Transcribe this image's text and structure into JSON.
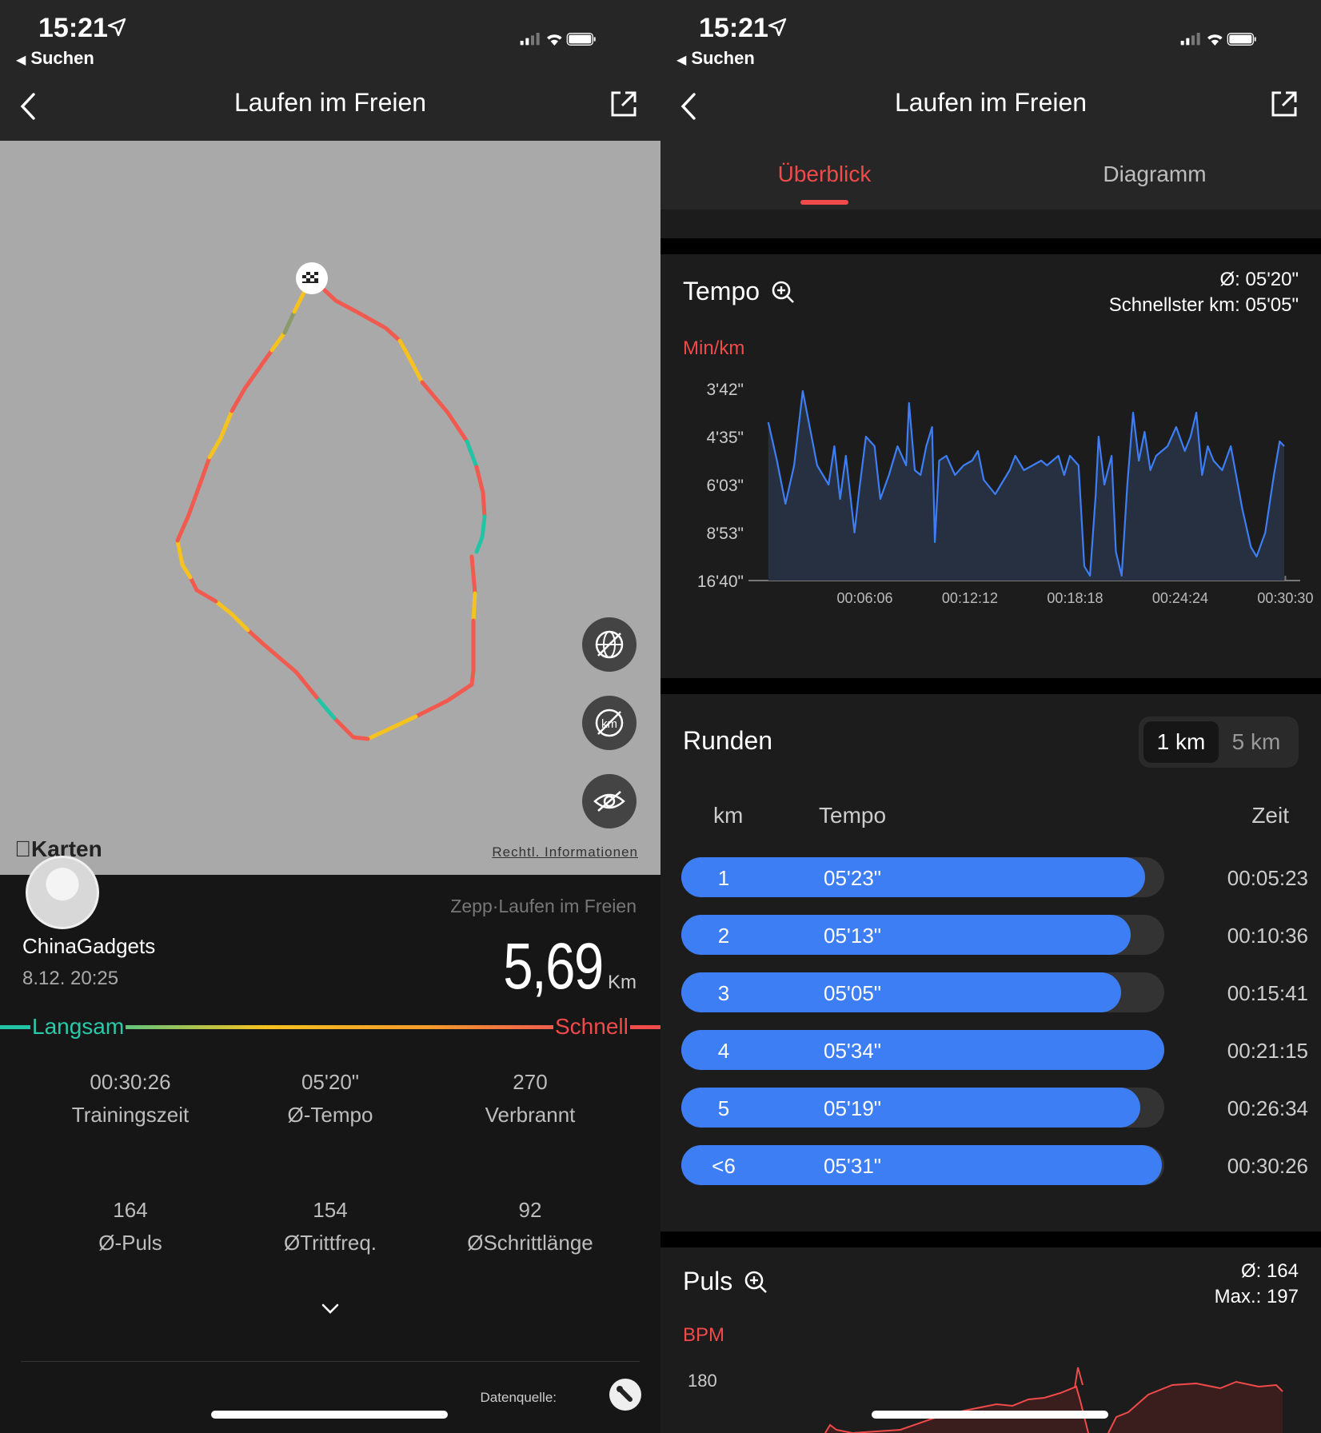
{
  "left": {
    "status": {
      "time": "15:21",
      "back_app": "Suchen"
    },
    "nav": {
      "title": "Laufen im Freien"
    },
    "map": {
      "maps_label": "Karten",
      "legal": "Rechtl. Informationen"
    },
    "summary": {
      "username": "ChinaGadgets",
      "datetime": "8.12. 20:25",
      "source": "Zepp·Laufen im Freien",
      "distance": "5,69",
      "distance_unit": "Km",
      "slow": "Langsam",
      "fast": "Schnell",
      "stats": [
        {
          "value": "00:30:26",
          "label": "Trainingszeit"
        },
        {
          "value": "05'20\"",
          "label": "Ø-Tempo"
        },
        {
          "value": "270",
          "label": "Verbrannt"
        },
        {
          "value": "164",
          "label": "Ø-Puls"
        },
        {
          "value": "154",
          "label": "ØTrittfreq."
        },
        {
          "value": "92",
          "label": "ØSchrittlänge"
        }
      ],
      "datasource_label": "Datenquelle:"
    },
    "colors": {
      "slow": "#23c4a6",
      "fast": "#f04a4a",
      "medium": "#f5c21f"
    }
  },
  "right": {
    "status": {
      "time": "15:21",
      "back_app": "Suchen"
    },
    "nav": {
      "title": "Laufen im Freien"
    },
    "tabs": [
      {
        "label": "Überblick",
        "active": true
      },
      {
        "label": "Diagramm",
        "active": false
      }
    ],
    "tempo": {
      "title": "Tempo",
      "avg": "Ø: 05'20\"",
      "fastest": "Schnellster km: 05'05\"",
      "unit": "Min/km"
    },
    "laps": {
      "title": "Runden",
      "options": [
        "1 km",
        "5 km"
      ],
      "headers": {
        "km": "km",
        "pace": "Tempo",
        "time": "Zeit"
      },
      "rows": [
        {
          "km": "1",
          "pace": "05'23\"",
          "time": "00:05:23",
          "fill": 0.96
        },
        {
          "km": "2",
          "pace": "05'13\"",
          "time": "00:10:36",
          "fill": 0.93
        },
        {
          "km": "3",
          "pace": "05'05\"",
          "time": "00:15:41",
          "fill": 0.91
        },
        {
          "km": "4",
          "pace": "05'34\"",
          "time": "00:21:15",
          "fill": 1.0
        },
        {
          "km": "5",
          "pace": "05'19\"",
          "time": "00:26:34",
          "fill": 0.95
        },
        {
          "km": "<6",
          "pace": "05'31\"",
          "time": "00:30:26",
          "fill": 0.995
        }
      ],
      "accent": "#3e7ef5"
    },
    "puls": {
      "title": "Puls",
      "avg": "Ø: 164",
      "max": "Max.: 197",
      "unit": "BPM"
    }
  },
  "chart_data": [
    {
      "type": "line",
      "title": "Tempo",
      "ylabel": "Min/km",
      "y_ticks": [
        "3'42\"",
        "4'35\"",
        "6'03\"",
        "8'53\"",
        "16'40\""
      ],
      "x_ticks": [
        "00:06:06",
        "00:12:12",
        "00:18:18",
        "00:24:24",
        "00:30:30"
      ],
      "x_unit": "seconds",
      "xlim": [
        0,
        1826
      ],
      "color": "#3e7ef5",
      "y_tick_index_values": [
        [
          30,
          0.7
        ],
        [
          60,
          1.5
        ],
        [
          90,
          2.4
        ],
        [
          120,
          1.6
        ],
        [
          150,
          0.05
        ],
        [
          200,
          1.6
        ],
        [
          240,
          2.0
        ],
        [
          260,
          1.2
        ],
        [
          280,
          2.3
        ],
        [
          300,
          1.4
        ],
        [
          330,
          3.0
        ],
        [
          345,
          2.2
        ],
        [
          370,
          1.0
        ],
        [
          400,
          1.2
        ],
        [
          420,
          2.3
        ],
        [
          450,
          1.8
        ],
        [
          480,
          1.2
        ],
        [
          510,
          1.6
        ],
        [
          520,
          0.3
        ],
        [
          540,
          1.7
        ],
        [
          560,
          1.8
        ],
        [
          580,
          1.2
        ],
        [
          600,
          0.8
        ],
        [
          610,
          3.2
        ],
        [
          625,
          1.5
        ],
        [
          650,
          1.4
        ],
        [
          680,
          1.8
        ],
        [
          710,
          1.6
        ],
        [
          740,
          1.5
        ],
        [
          760,
          1.3
        ],
        [
          780,
          1.9
        ],
        [
          820,
          2.2
        ],
        [
          850,
          1.9
        ],
        [
          870,
          1.7
        ],
        [
          890,
          1.4
        ],
        [
          920,
          1.7
        ],
        [
          950,
          1.6
        ],
        [
          980,
          1.5
        ],
        [
          1000,
          1.6
        ],
        [
          1020,
          1.5
        ],
        [
          1040,
          1.4
        ],
        [
          1060,
          1.8
        ],
        [
          1080,
          1.4
        ],
        [
          1110,
          1.6
        ],
        [
          1130,
          3.7
        ],
        [
          1150,
          3.9
        ],
        [
          1170,
          2.2
        ],
        [
          1180,
          1.0
        ],
        [
          1200,
          2.0
        ],
        [
          1225,
          1.4
        ],
        [
          1240,
          3.4
        ],
        [
          1260,
          3.9
        ],
        [
          1280,
          2.0
        ],
        [
          1300,
          0.5
        ],
        [
          1320,
          1.5
        ],
        [
          1340,
          0.9
        ],
        [
          1360,
          1.7
        ],
        [
          1380,
          1.4
        ],
        [
          1420,
          1.2
        ],
        [
          1450,
          0.8
        ],
        [
          1480,
          1.3
        ],
        [
          1500,
          1.0
        ],
        [
          1520,
          0.5
        ],
        [
          1540,
          1.8
        ],
        [
          1560,
          1.2
        ],
        [
          1580,
          1.5
        ],
        [
          1610,
          1.7
        ],
        [
          1640,
          1.2
        ],
        [
          1680,
          2.5
        ],
        [
          1710,
          3.3
        ],
        [
          1730,
          3.5
        ],
        [
          1760,
          3.0
        ],
        [
          1790,
          1.8
        ],
        [
          1810,
          1.1
        ],
        [
          1826,
          1.2
        ]
      ],
      "note": "values expressed as y-tick index (0 = 3'42\", 4 = 16'40\"), inverted axis"
    },
    {
      "type": "area",
      "title": "Puls",
      "ylabel": "BPM",
      "y_ticks": [
        "180"
      ],
      "color": "#f04a4a"
    }
  ]
}
